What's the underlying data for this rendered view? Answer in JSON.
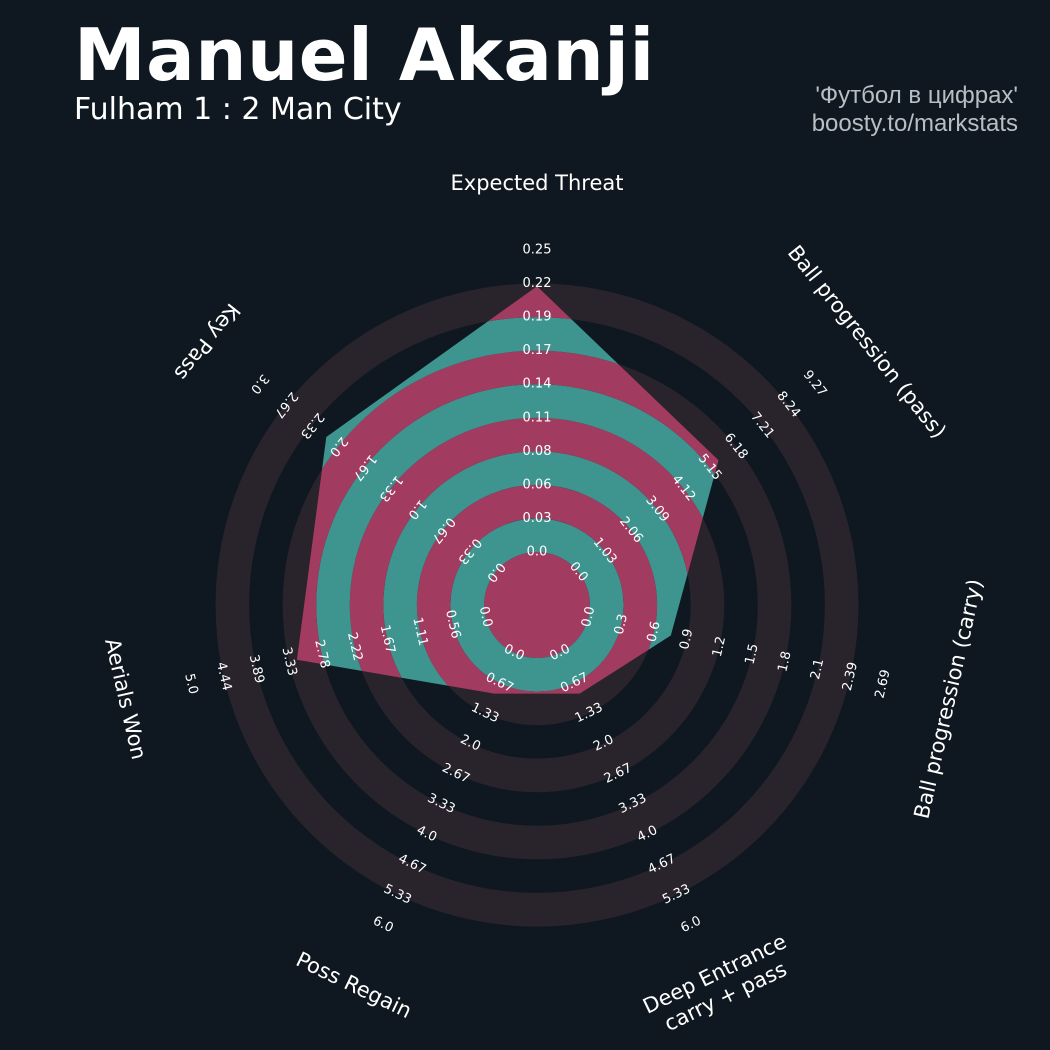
{
  "header": {
    "title": "Manuel Akanji",
    "subtitle": "Fulham 1 : 2 Man City",
    "credit_line1": "'Футбол в цифрах'",
    "credit_line2": "boosty.to/markstats"
  },
  "colors": {
    "background": "#0f1820",
    "ring_dark": "#29242b",
    "ring_value_a": "#a23b60",
    "ring_value_b": "#3e958f",
    "text": "#ffffff"
  },
  "chart_data": {
    "type": "radar",
    "title": "Manuel Akanji",
    "grid": false,
    "axes": [
      {
        "name": "Expected Threat",
        "value": 0.22,
        "range": [
          0,
          0.25
        ],
        "ticks": [
          "0.0",
          "0.03",
          "0.06",
          "0.08",
          "0.11",
          "0.14",
          "0.17",
          "0.19",
          "0.22",
          "0.25"
        ]
      },
      {
        "name": "Ball progression (pass)",
        "value": 5.5,
        "range": [
          0,
          9.27
        ],
        "ticks": [
          "0.0",
          "1.03",
          "2.06",
          "3.09",
          "4.12",
          "5.15",
          "6.18",
          "7.21",
          "8.24",
          "9.27"
        ]
      },
      {
        "name": "Ball progression (carry)",
        "value": 0.75,
        "range": [
          0,
          2.69
        ],
        "ticks": [
          "0.0",
          "0.3",
          "0.6",
          "0.9",
          "1.2",
          "1.5",
          "1.8",
          "2.1",
          "2.39",
          "2.69"
        ]
      },
      {
        "name": "Deep Entrance\ncarry + pass",
        "value": 0.9,
        "range": [
          0,
          6.0
        ],
        "ticks": [
          "0.0",
          "0.67",
          "1.33",
          "2.0",
          "2.67",
          "3.33",
          "4.0",
          "4.67",
          "5.33",
          "6.0"
        ]
      },
      {
        "name": "Poss Regain",
        "value": 0.9,
        "range": [
          0,
          6.0
        ],
        "ticks": [
          "0.0",
          "0.67",
          "1.33",
          "2.0",
          "2.67",
          "3.33",
          "4.0",
          "4.67",
          "5.33",
          "6.0"
        ]
      },
      {
        "name": "Aerials Won",
        "value": 3.2,
        "range": [
          0,
          5.0
        ],
        "ticks": [
          "0.0",
          "0.56",
          "1.11",
          "1.67",
          "2.22",
          "2.78",
          "3.33",
          "3.89",
          "4.44",
          "5.0"
        ]
      },
      {
        "name": "Key Pass",
        "value": 2.15,
        "range": [
          0,
          3.0
        ],
        "ticks": [
          "0.0",
          "0.33",
          "0.67",
          "1.0",
          "1.33",
          "1.67",
          "2.0",
          "2.33",
          "2.67",
          "3.0"
        ]
      }
    ]
  }
}
